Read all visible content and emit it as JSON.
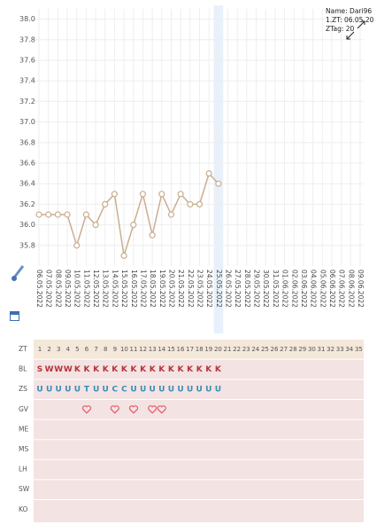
{
  "chart_data": {
    "type": "line",
    "info": [
      "Name: Dari96",
      "1.ZT: 06.05.20",
      "ZTag: 20"
    ],
    "categories": [
      "06.05.2022",
      "07.05.2022",
      "08.05.2022",
      "09.05.2022",
      "10.05.2022",
      "11.05.2022",
      "12.05.2022",
      "13.05.2022",
      "14.05.2022",
      "15.05.2022",
      "16.05.2022",
      "17.05.2022",
      "18.05.2022",
      "19.05.2022",
      "20.05.2022",
      "21.05.2022",
      "22.05.2022",
      "23.05.2022",
      "24.05.2022",
      "25.05.2022",
      "26.05.2022",
      "27.05.2022",
      "28.05.2022",
      "29.05.2022",
      "30.05.2022",
      "31.05.2022",
      "01.06.2022",
      "02.06.2022",
      "03.06.2022",
      "04.06.2022",
      "05.06.2022",
      "06.06.2022",
      "07.06.2022",
      "08.06.2022",
      "09.06.2022"
    ],
    "highlight": "25.05.2022",
    "series": [
      {
        "color": "#c9ae90",
        "values": [
          36.1,
          36.1,
          36.1,
          36.1,
          35.8,
          36.1,
          36.0,
          36.2,
          36.3,
          35.7,
          36.0,
          36.3,
          35.9,
          36.3,
          36.1,
          36.3,
          36.2,
          36.2,
          36.5,
          36.4,
          null,
          null,
          null,
          null,
          null,
          null,
          null,
          null,
          null,
          null,
          null,
          null,
          null,
          null,
          null
        ]
      }
    ],
    "ylim": [
      35.6,
      38.1
    ],
    "yticks": [
      {
        "value": 35.8,
        "label": "35.8"
      },
      {
        "value": 36,
        "label": "36.0"
      },
      {
        "value": 36.2,
        "label": "36.2"
      },
      {
        "value": 36.4,
        "label": "36.4"
      },
      {
        "value": 36.6,
        "label": "36.6"
      },
      {
        "value": 36.8,
        "label": "36.8"
      },
      {
        "value": 37,
        "label": "37.0"
      },
      {
        "value": 37.2,
        "label": "37.2"
      },
      {
        "value": 37.4,
        "label": "37.4"
      },
      {
        "value": 37.6,
        "label": "37.6"
      },
      {
        "value": 37.8,
        "label": "37.8"
      },
      {
        "value": 38,
        "label": "38.0"
      }
    ],
    "grid": true
  },
  "table": {
    "rows": [
      {
        "label": "ZT",
        "cells": [
          1,
          2,
          3,
          4,
          5,
          6,
          7,
          8,
          9,
          10,
          11,
          12,
          13,
          14,
          15,
          16,
          17,
          18,
          19,
          20,
          21,
          22,
          23,
          24,
          25,
          26,
          27,
          28,
          29,
          30,
          31,
          32,
          33,
          34,
          35
        ]
      },
      {
        "label": "BL",
        "cells": [
          "S",
          "W",
          "W",
          "W",
          "K",
          "K",
          "K",
          "K",
          "K",
          "K",
          "K",
          "K",
          "K",
          "K",
          "K",
          "K",
          "K",
          "K",
          "K",
          "K"
        ]
      },
      {
        "label": "ZS",
        "cells": [
          "U",
          "U",
          "U",
          "U",
          "U",
          "T",
          "U",
          "U",
          "C",
          "C",
          "U",
          "U",
          "U",
          "U",
          "U",
          "U",
          "U",
          "U",
          "U",
          "U"
        ]
      },
      {
        "label": "GV",
        "cells": []
      },
      {
        "label": "ME",
        "cells": []
      },
      {
        "label": "MS",
        "cells": []
      },
      {
        "label": "LH",
        "cells": []
      },
      {
        "label": "SW",
        "cells": []
      },
      {
        "label": "KO",
        "cells": []
      }
    ]
  }
}
